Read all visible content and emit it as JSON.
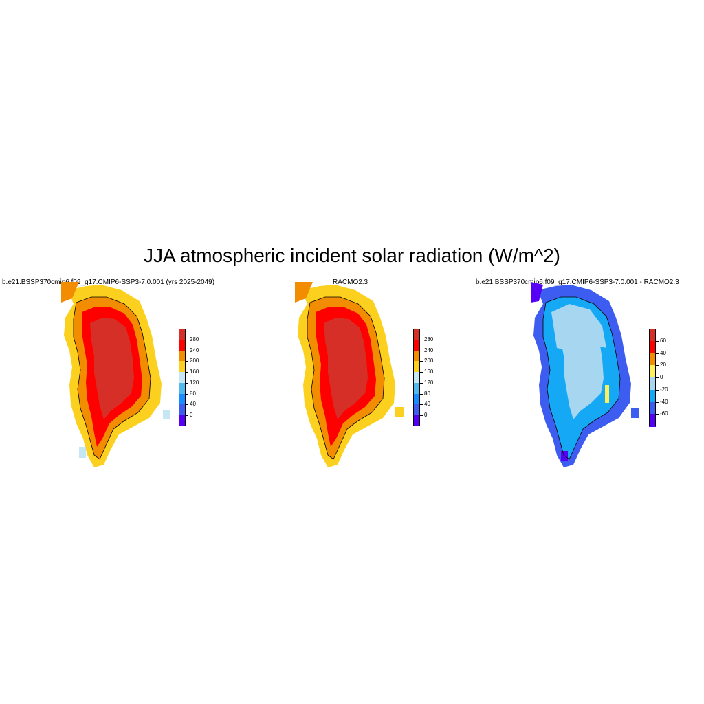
{
  "title": "JJA atmospheric incident solar radiation (W/m^2)",
  "panels": [
    {
      "title": "b.e21.BSSP370cmip6.f09_g17.CMIP6-SSP3-7.0.001 (yrs 2025-2049)",
      "colorbar": {
        "labels": [
          "280",
          "240",
          "200",
          "160",
          "120",
          "80",
          "40",
          "0"
        ],
        "colors": [
          "#d62f27",
          "#ff0000",
          "#f28c00",
          "#fbd01f",
          "#c4e6f5",
          "#52b8f0",
          "#1a8cff",
          "#3d5cf0",
          "#5500f5"
        ]
      },
      "dominant_colors": {
        "interior": "#d62f27",
        "middle": "#ff0000",
        "edge": "#f28c00",
        "coast": "#fbd01f",
        "low": "#c4e6f5"
      }
    },
    {
      "title": "RACMO2.3",
      "colorbar": {
        "labels": [
          "280",
          "240",
          "200",
          "160",
          "120",
          "80",
          "40",
          "0"
        ],
        "colors": [
          "#d62f27",
          "#ff0000",
          "#f28c00",
          "#fbd01f",
          "#c4e6f5",
          "#52b8f0",
          "#1a8cff",
          "#3d5cf0",
          "#5500f5"
        ]
      },
      "dominant_colors": {
        "interior": "#d62f27",
        "middle": "#ff0000",
        "edge": "#f28c00",
        "coast": "#fbd01f"
      }
    },
    {
      "title": "b.e21.BSSP370cmip6.f09_g17.CMIP6-SSP3-7.0.001 - RACMO2.3",
      "colorbar": {
        "labels": [
          "60",
          "40",
          "20",
          "0",
          "-20",
          "-40",
          "-60"
        ],
        "colors": [
          "#d62f27",
          "#ff0000",
          "#f28c00",
          "#fdf05a",
          "#a6d6f0",
          "#14a8f5",
          "#3d5cf0",
          "#5500f5"
        ]
      },
      "dominant_colors": {
        "interior": "#a6d6f0",
        "south": "#14a8f5",
        "edge": "#3d5cf0",
        "extreme": "#5500f5",
        "positive": "#fdf05a"
      }
    }
  ]
}
